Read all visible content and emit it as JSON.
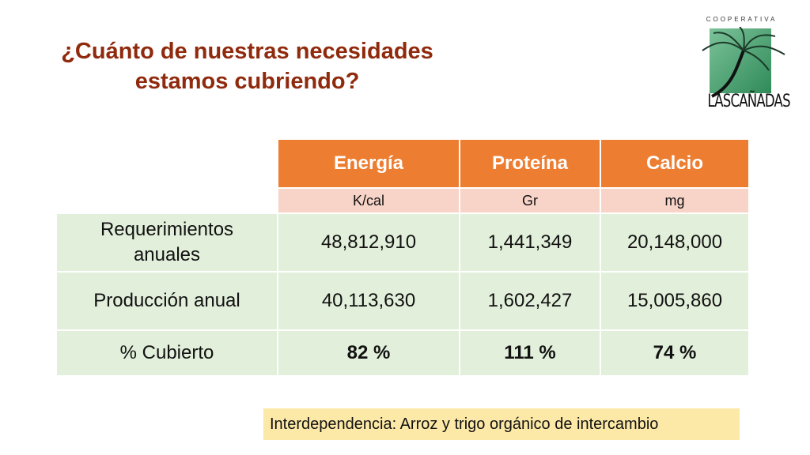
{
  "title": {
    "line1": "¿Cuánto de nuestras necesidades",
    "line2": "estamos cubriendo?"
  },
  "logo": {
    "top": "COOPERATIVA",
    "name": "LASCAÑADAS"
  },
  "table": {
    "headers": [
      "Energía",
      "Proteína",
      "Calcio"
    ],
    "units": [
      "K/cal",
      "Gr",
      "mg"
    ],
    "rows": [
      {
        "label": "Requerimientos anuales",
        "values": [
          "48,812,910",
          "1,441,349",
          "20,148,000"
        ]
      },
      {
        "label": "Producción anual",
        "values": [
          "40,113,630",
          "1,602,427",
          "15,005,860"
        ]
      },
      {
        "label": "% Cubierto",
        "values": [
          "82 %",
          "111 %",
          "74 %"
        ]
      }
    ]
  },
  "note": "Interdependencia: Arroz y trigo orgánico de intercambio"
}
